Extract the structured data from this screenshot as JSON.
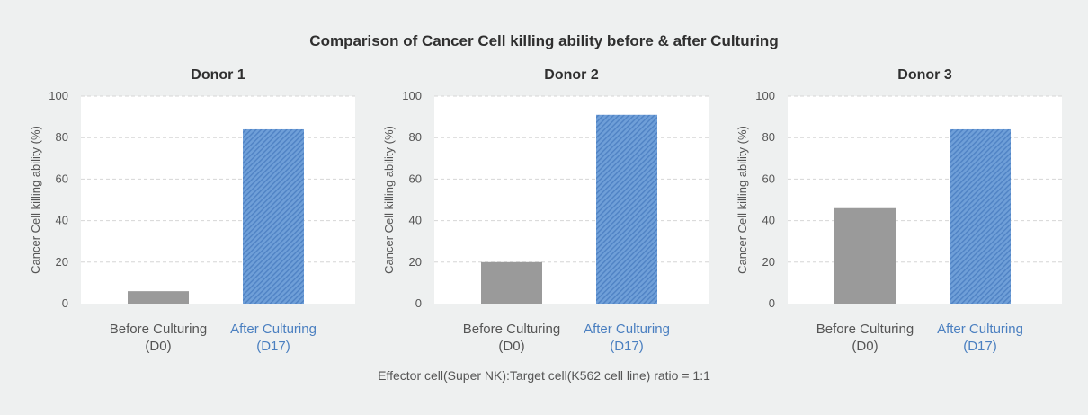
{
  "title": "Comparison of Cancer Cell killing ability before & after Culturing",
  "footnote": "Effector cell(Super NK):Target cell(K562 cell line) ratio = 1:1",
  "colors": {
    "before": "#9a9a9a",
    "after": "#6f9fd8",
    "after_stripe": "#4f82c4",
    "after_label": "#4a7fc0",
    "before_label": "#555555",
    "grid": "#d6d6d6",
    "plot_bg": "#ffffff"
  },
  "chart_data": [
    {
      "type": "bar",
      "title": "Donor 1",
      "ylabel": "Cancer Cell killing ability (%)",
      "ylim": [
        0,
        100
      ],
      "yticks": [
        0,
        20,
        40,
        60,
        80,
        100
      ],
      "grid": true,
      "categories": [
        {
          "line1": "Before Culturing",
          "line2": "(D0)"
        },
        {
          "line1": "After Culturing",
          "line2": "(D17)"
        }
      ],
      "values": [
        6,
        84
      ]
    },
    {
      "type": "bar",
      "title": "Donor 2",
      "ylabel": "Cancer Cell killing ability (%)",
      "ylim": [
        0,
        100
      ],
      "yticks": [
        0,
        20,
        40,
        60,
        80,
        100
      ],
      "grid": true,
      "categories": [
        {
          "line1": "Before Culturing",
          "line2": "(D0)"
        },
        {
          "line1": "After Culturing",
          "line2": "(D17)"
        }
      ],
      "values": [
        20,
        91
      ]
    },
    {
      "type": "bar",
      "title": "Donor 3",
      "ylabel": "Cancer Cell killing ability (%)",
      "ylim": [
        0,
        100
      ],
      "yticks": [
        0,
        20,
        40,
        60,
        80,
        100
      ],
      "grid": true,
      "categories": [
        {
          "line1": "Before Culturing",
          "line2": "(D0)"
        },
        {
          "line1": "After Culturing",
          "line2": "(D17)"
        }
      ],
      "values": [
        46,
        84
      ]
    }
  ]
}
